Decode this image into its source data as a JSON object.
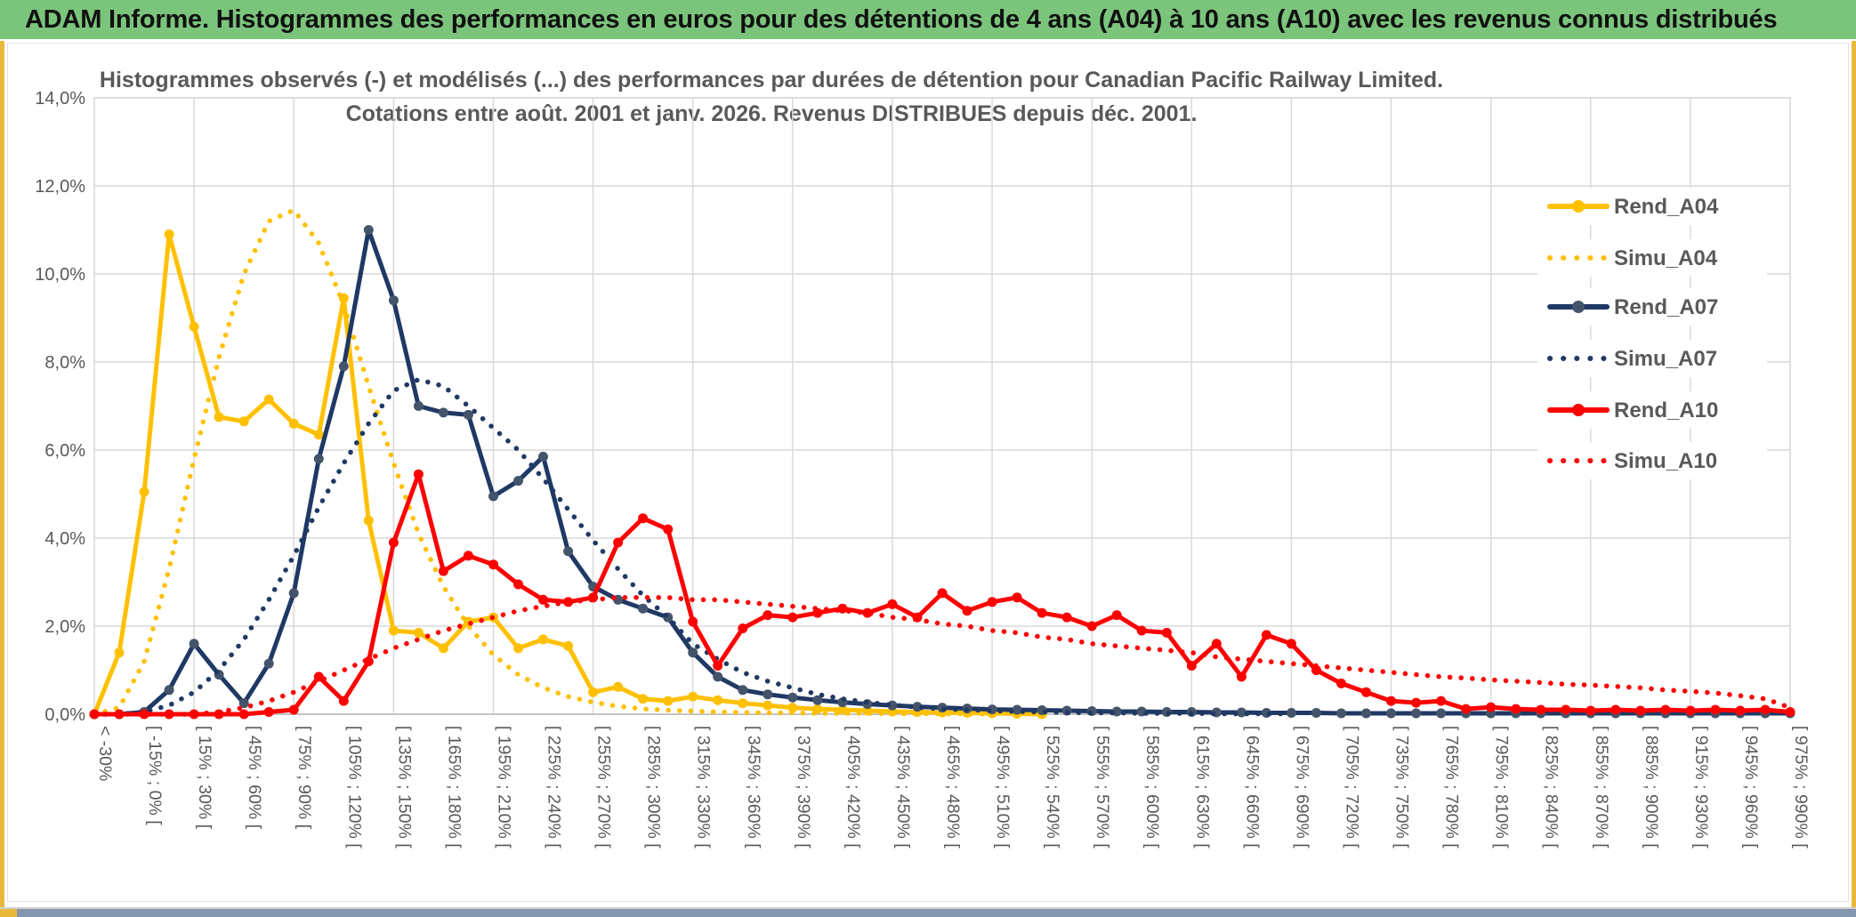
{
  "header": {
    "title": "ADAM Informe. Histogrammes des performances en euros pour des détentions de 4 ans (A04) à 10 ans (A10) avec les revenus connus distribués"
  },
  "chart": {
    "title_line1": "Histogrammes observés (-) et modélisés (...) des performances par durées de détention pour Canadian Pacific Railway Limited.",
    "title_line2": "Cotations entre août. 2001 et janv. 2026. Revenus DISTRIBUES depuis déc. 2001.",
    "y_ticks": [
      "14,0%",
      "12,0%",
      "10,0%",
      "8,0%",
      "6,0%",
      "4,0%",
      "2,0%",
      "0,0%"
    ],
    "legend": [
      {
        "label": "Rend_A04",
        "style": "solid",
        "color": "#FFC000",
        "marker": "#FFC000"
      },
      {
        "label": "Simu_A04",
        "style": "dotted",
        "color": "#FFC000",
        "marker": "#FFC000"
      },
      {
        "label": "Rend_A07",
        "style": "solid",
        "color": "#1F3864",
        "marker": "#44546A"
      },
      {
        "label": "Simu_A07",
        "style": "dotted",
        "color": "#1F3864",
        "marker": "#1F3864"
      },
      {
        "label": "Rend_A10",
        "style": "solid",
        "color": "#FF0000",
        "marker": "#FF0000"
      },
      {
        "label": "Simu_A10",
        "style": "dotted",
        "color": "#FF0000",
        "marker": "#FF0000"
      }
    ],
    "chart_data": {
      "type": "line",
      "title": "Histogrammes observés (-) et modélisés (...) des performances par durées de détention pour Canadian Pacific Railway Limited. Cotations entre août. 2001 et janv. 2026. Revenus DISTRIBUES depuis déc. 2001.",
      "xlabel": "",
      "ylabel": "",
      "ylim_percent": [
        0,
        14
      ],
      "y_gridline_step_percent": 2,
      "grid": "on",
      "legend_position": "right-overlay",
      "n_bins": 69,
      "label_every": 2,
      "categories": [
        "< -30%",
        "[ -15% ; 0% [",
        "[ 15% ; 30% [",
        "[ 45% ; 60% [",
        "[ 75% ; 90% [",
        "[ 105% ; 120% [",
        "[ 135% ; 150% [",
        "[ 165% ; 180% [",
        "[ 195% ; 210% [",
        "[ 225% ; 240% [",
        "[ 255% ; 270% [",
        "[ 285% ; 300% [",
        "[ 315% ; 330% [",
        "[ 345% ; 360% [",
        "[ 375% ; 390% [",
        "[ 405% ; 420% [",
        "[ 435% ; 450% [",
        "[ 465% ; 480% [",
        "[ 495% ; 510% [",
        "[ 525% ; 540% [",
        "[ 555% ; 570% [",
        "[ 585% ; 600% [",
        "[ 615% ; 630% [",
        "[ 645% ; 660% [",
        "[ 675% ; 690% [",
        "[ 705% ; 720% [",
        "[ 735% ; 750% [",
        "[ 765% ; 780% [",
        "[ 795% ; 810% [",
        "[ 825% ; 840% [",
        "[ 855% ; 870% [",
        "[ 885% ; 900% [",
        "[ 915% ; 930% [",
        "[ 945% ; 960% [",
        "[ 975% ; 990% ["
      ],
      "series": [
        {
          "name": "Rend_A04",
          "style": "solid",
          "color": "#FFC000",
          "marker_color": "#FFC000",
          "values": [
            0,
            1.4,
            5.05,
            10.9,
            8.8,
            6.75,
            6.65,
            7.15,
            6.6,
            6.35,
            9.45,
            4.4,
            1.9,
            1.85,
            1.5,
            2.1,
            2.2,
            1.5,
            1.7,
            1.55,
            0.5,
            0.62,
            0.35,
            0.3,
            0.4,
            0.32,
            0.25,
            0.2,
            0.15,
            0.12,
            0.1,
            0.08,
            0.06,
            0.05,
            0.04,
            0.03,
            0.02,
            0.01,
            0
          ]
        },
        {
          "name": "Simu_A04",
          "style": "dotted",
          "color": "#FFC000",
          "marker_color": "#FFC000",
          "values": [
            0,
            0.15,
            1.2,
            3.3,
            5.8,
            8.1,
            10.0,
            11.2,
            11.45,
            10.7,
            9.3,
            7.45,
            5.7,
            4.1,
            2.9,
            2.0,
            1.35,
            0.9,
            0.6,
            0.4,
            0.27,
            0.18,
            0.12,
            0.09,
            0.07,
            0.05,
            0.04,
            0.03,
            0.03,
            0.02,
            0.02,
            0.02,
            0.01,
            0.01,
            0.01,
            0.01,
            0
          ]
        },
        {
          "name": "Rend_A07",
          "style": "solid",
          "color": "#1F3864",
          "marker_color": "#44546A",
          "values": [
            0,
            0,
            0.05,
            0.55,
            1.6,
            0.9,
            0.25,
            1.15,
            2.75,
            5.8,
            7.9,
            11.0,
            9.4,
            7.0,
            6.85,
            6.8,
            4.95,
            5.3,
            5.85,
            3.7,
            2.9,
            2.6,
            2.4,
            2.2,
            1.4,
            0.85,
            0.55,
            0.45,
            0.38,
            0.32,
            0.27,
            0.23,
            0.2,
            0.17,
            0.15,
            0.13,
            0.11,
            0.1,
            0.09,
            0.08,
            0.07,
            0.06,
            0.06,
            0.05,
            0.05,
            0.04,
            0.04,
            0.03,
            0.03,
            0.03,
            0.02,
            0.02,
            0.02,
            0.02,
            0.02,
            0.02,
            0.02,
            0.02,
            0.02,
            0.02,
            0.02,
            0.02,
            0.02,
            0.02,
            0.02,
            0.02,
            0.02,
            0.02,
            0.02
          ]
        },
        {
          "name": "Simu_A07",
          "style": "dotted",
          "color": "#1F3864",
          "marker_color": "#1F3864",
          "values": [
            0,
            0,
            0.05,
            0.2,
            0.5,
            1.0,
            1.7,
            2.6,
            3.6,
            4.7,
            5.7,
            6.6,
            7.35,
            7.6,
            7.45,
            7.0,
            6.5,
            6.0,
            5.35,
            4.65,
            3.95,
            3.3,
            2.7,
            2.2,
            1.6,
            1.25,
            0.95,
            0.75,
            0.6,
            0.45,
            0.35,
            0.27,
            0.21,
            0.16,
            0.12,
            0.1,
            0.08,
            0.06,
            0.05,
            0.04,
            0.03,
            0.03,
            0.02,
            0.02,
            0.02,
            0.01,
            0.01,
            0.01,
            0.01
          ]
        },
        {
          "name": "Rend_A10",
          "style": "solid",
          "color": "#FF0000",
          "marker_color": "#FF0000",
          "values": [
            0,
            0,
            0,
            0,
            0,
            0,
            0,
            0.05,
            0.1,
            0.85,
            0.3,
            1.2,
            3.9,
            5.45,
            3.25,
            3.6,
            3.4,
            2.95,
            2.6,
            2.55,
            2.65,
            3.9,
            4.45,
            4.2,
            2.1,
            1.1,
            1.95,
            2.25,
            2.2,
            2.3,
            2.4,
            2.3,
            2.5,
            2.2,
            2.75,
            2.35,
            2.55,
            2.65,
            2.3,
            2.2,
            2.0,
            2.25,
            1.9,
            1.85,
            1.1,
            1.6,
            0.85,
            1.8,
            1.6,
            1.0,
            0.7,
            0.5,
            0.3,
            0.26,
            0.3,
            0.12,
            0.16,
            0.12,
            0.1,
            0.1,
            0.08,
            0.1,
            0.08,
            0.1,
            0.08,
            0.1,
            0.08,
            0.1,
            0.05
          ]
        },
        {
          "name": "Simu_A10",
          "style": "dotted",
          "color": "#FF0000",
          "marker_color": "#FF0000",
          "values": [
            0,
            0,
            0,
            0,
            0,
            0.05,
            0.15,
            0.3,
            0.5,
            0.75,
            1.0,
            1.25,
            1.5,
            1.7,
            1.9,
            2.05,
            2.2,
            2.35,
            2.45,
            2.55,
            2.6,
            2.65,
            2.65,
            2.65,
            2.6,
            2.6,
            2.55,
            2.5,
            2.45,
            2.4,
            2.35,
            2.3,
            2.2,
            2.15,
            2.05,
            2.0,
            1.9,
            1.85,
            1.75,
            1.7,
            1.6,
            1.55,
            1.5,
            1.45,
            1.4,
            1.3,
            1.25,
            1.2,
            1.15,
            1.1,
            1.05,
            1.0,
            0.95,
            0.9,
            0.85,
            0.82,
            0.78,
            0.75,
            0.72,
            0.68,
            0.66,
            0.63,
            0.6,
            0.55,
            0.52,
            0.48,
            0.42,
            0.35,
            0.15
          ]
        }
      ]
    }
  },
  "colors": {
    "header_green": "#7bc47c",
    "accent_gold": "#e9b93c",
    "grid": "#D9D9D9",
    "axis_line": "#BFBFBF",
    "axis_text": "#595959",
    "bottom_bar": "#8496b0",
    "series_gold": "#FFC000",
    "series_navy": "#1F3864",
    "series_navy_marker": "#44546A",
    "series_red": "#FF0000"
  }
}
